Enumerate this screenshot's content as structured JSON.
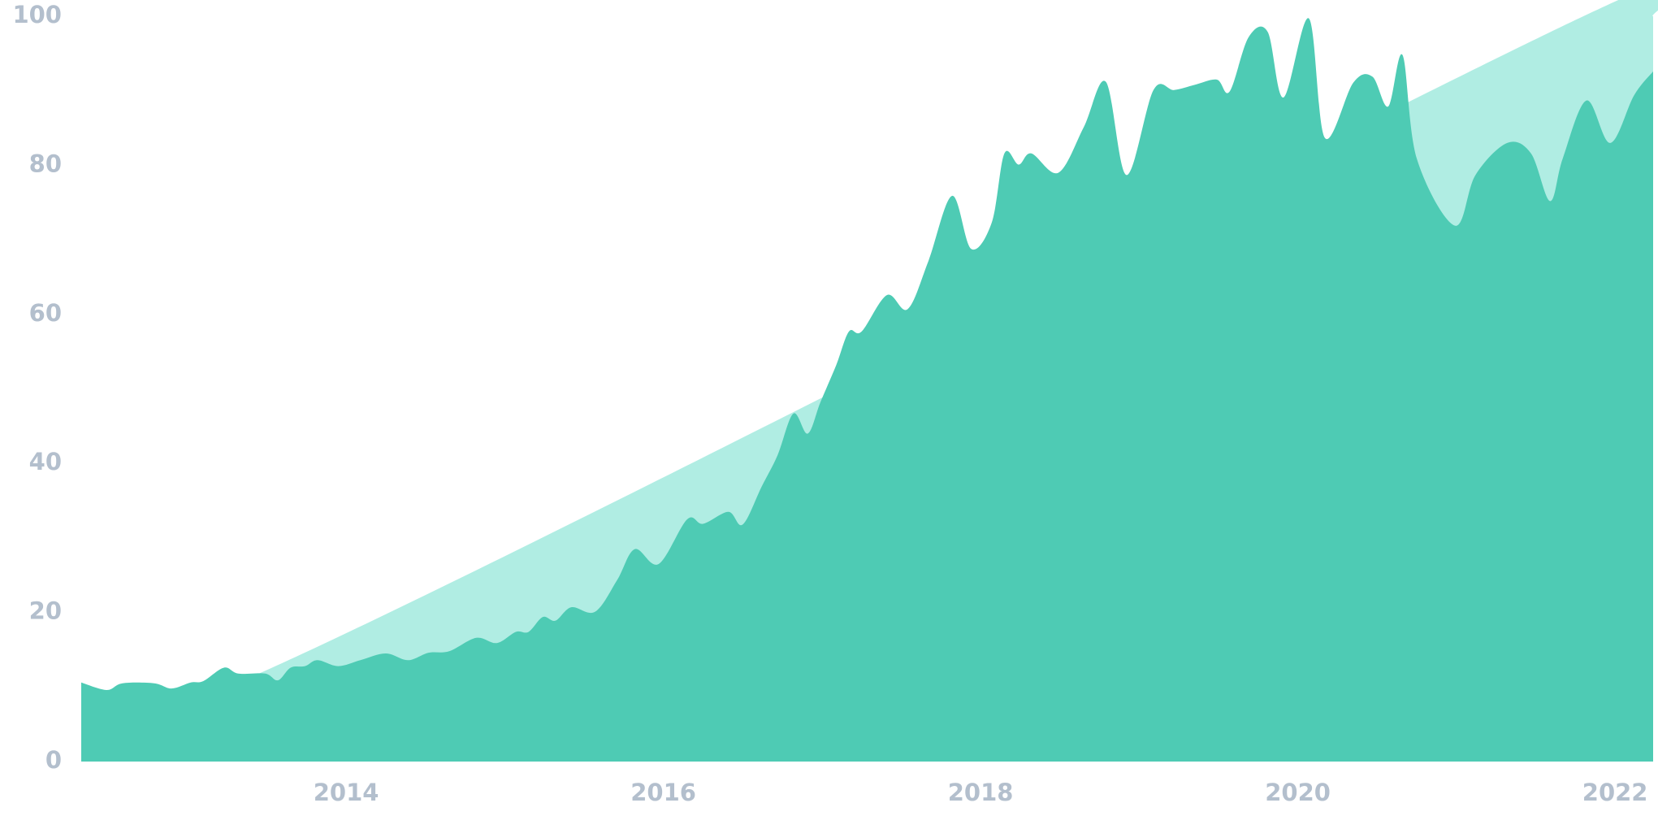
{
  "chart_data": {
    "type": "area",
    "x": [
      2012.33,
      2012.49,
      2012.59,
      2012.79,
      2012.9,
      2013.02,
      2013.1,
      2013.23,
      2013.32,
      2013.49,
      2013.57,
      2013.65,
      2013.74,
      2013.82,
      2013.95,
      2014.09,
      2014.25,
      2014.39,
      2014.52,
      2014.65,
      2014.82,
      2014.95,
      2015.07,
      2015.15,
      2015.24,
      2015.32,
      2015.42,
      2015.57,
      2015.71,
      2015.82,
      2015.97,
      2016.15,
      2016.25,
      2016.41,
      2016.5,
      2016.62,
      2016.72,
      2016.82,
      2016.91,
      2016.99,
      2017.09,
      2017.17,
      2017.25,
      2017.41,
      2017.54,
      2017.67,
      2017.82,
      2017.94,
      2018.07,
      2018.15,
      2018.24,
      2018.32,
      2018.49,
      2018.65,
      2018.79,
      2018.92,
      2019.09,
      2019.22,
      2019.35,
      2019.49,
      2019.57,
      2019.69,
      2019.81,
      2019.91,
      2020.07,
      2020.17,
      2020.35,
      2020.47,
      2020.57,
      2020.66,
      2020.75,
      2020.99,
      2021.12,
      2021.32,
      2021.47,
      2021.59,
      2021.67,
      2021.82,
      2021.97,
      2022.12,
      2022.24
    ],
    "series": [
      {
        "color": "#b0ede3",
        "x": [
          2012.33,
          2013.45,
          2021.8,
          2022.24
        ],
        "values": [
          10.5,
          11.8,
          100,
          100
        ]
      },
      {
        "color": "#4ecbb4",
        "values": [
          10.6,
          9.6,
          10.5,
          10.5,
          9.8,
          10.6,
          10.8,
          12.6,
          11.8,
          11.8,
          10.9,
          12.6,
          12.8,
          13.6,
          12.8,
          13.6,
          14.5,
          13.6,
          14.6,
          14.8,
          16.6,
          15.9,
          17.4,
          17.4,
          19.4,
          18.9,
          20.7,
          20.1,
          24.4,
          28.5,
          26.5,
          32.5,
          31.9,
          33.5,
          31.8,
          36.9,
          41.1,
          46.7,
          44.0,
          48.2,
          53.2,
          57.7,
          57.7,
          62.6,
          60.7,
          67.1,
          75.9,
          68.8,
          72.3,
          81.6,
          80.1,
          81.6,
          79.0,
          85.1,
          91.2,
          78.7,
          90.1,
          90.1,
          90.8,
          91.5,
          89.9,
          97.2,
          97.9,
          89.1,
          99.7,
          83.7,
          91.1,
          91.9,
          87.9,
          94.8,
          80.9,
          71.9,
          78.7,
          83.0,
          81.6,
          75.2,
          80.9,
          88.7,
          83.0,
          89.4,
          92.6
        ]
      }
    ],
    "xlim": [
      2012.33,
      2022.24
    ],
    "xticks": [
      2014,
      2016,
      2018,
      2020,
      2022
    ],
    "ylim": [
      0,
      100
    ],
    "yticks": [
      0,
      20,
      40,
      60,
      80,
      100
    ]
  }
}
